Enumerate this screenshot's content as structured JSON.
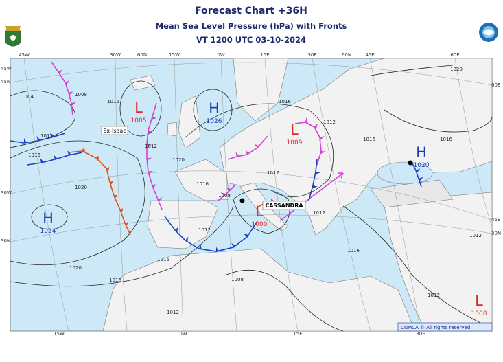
{
  "header": {
    "title": "Forecast Chart +36H",
    "subtitle": "Mean Sea Level Pressure (hPa) with Fronts",
    "valid_time": "VT 1200 UTC 03-10-2024"
  },
  "centers": [
    {
      "symbol": "L",
      "pressure": 1005
    },
    {
      "symbol": "H",
      "pressure": 1026
    },
    {
      "symbol": "L",
      "pressure": 1009
    },
    {
      "symbol": "H",
      "pressure": 1020
    },
    {
      "symbol": "H",
      "pressure": 1024
    },
    {
      "symbol": "L",
      "pressure": 1000
    },
    {
      "symbol": "L",
      "pressure": 1008
    }
  ],
  "storm_labels": [
    "Ex-Isaac",
    "CASSANDRA"
  ],
  "isobar_labels": [
    1004,
    1008,
    1012,
    1016,
    1020,
    1020,
    1016,
    1012,
    1012,
    1020,
    1016,
    1008,
    1012,
    1016,
    1012,
    1008,
    1016,
    1012,
    1012,
    1016,
    1020,
    1016,
    1012,
    1016,
    1012,
    1012
  ],
  "grid_labels": {
    "top": [
      "45W",
      "30W",
      "60N",
      "15W",
      "0W",
      "15E",
      "30E",
      "60N",
      "45E",
      "60E"
    ],
    "left": [
      "45W",
      "45N",
      "30W",
      "30N"
    ],
    "right": [
      "60E",
      "45E",
      "30N"
    ],
    "bottom": [
      "15W",
      "0W",
      "15E",
      "30E"
    ]
  },
  "copyright": "CNMCA © All rights reserved"
}
